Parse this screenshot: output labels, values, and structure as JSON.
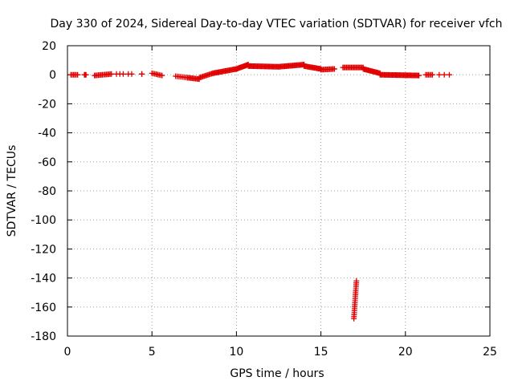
{
  "chart_data": {
    "type": "scatter",
    "title": "Day 330 of 2024, Sidereal Day-to-day VTEC variation (SDTVAR) for receiver vfch",
    "xlabel": "GPS time / hours",
    "ylabel": "SDTVAR / TECUs",
    "xlim": [
      0,
      25
    ],
    "ylim": [
      -180,
      20
    ],
    "x_ticks": [
      "0",
      "5",
      "10",
      "15",
      "20",
      "25"
    ],
    "y_ticks": [
      "20",
      "0",
      "-20",
      "-40",
      "-60",
      "-80",
      "-100",
      "-120",
      "-140",
      "-160",
      "-180"
    ],
    "grid": true,
    "marker": "plus",
    "color": "#e00000",
    "series": [
      {
        "name": "SDTVAR",
        "segments": [
          {
            "x0": 0.2,
            "x1": 0.6,
            "y0": 0,
            "y1": 0,
            "step": 0.08
          },
          {
            "x0": 1.0,
            "x1": 1.1,
            "y0": 0,
            "y1": 0,
            "step": 0.05
          },
          {
            "x0": 1.6,
            "x1": 2.6,
            "y0": -0.5,
            "y1": 0.5,
            "step": 0.08
          },
          {
            "x0": 2.9,
            "x1": 3.3,
            "y0": 0.5,
            "y1": 0.5,
            "step": 0.2
          },
          {
            "x0": 3.6,
            "x1": 3.8,
            "y0": 0.5,
            "y1": 0.5,
            "step": 0.2
          },
          {
            "x0": 4.4,
            "x1": 4.4,
            "y0": 0.5,
            "y1": 0.5,
            "step": 1
          },
          {
            "x0": 5.0,
            "x1": 5.6,
            "y0": 1,
            "y1": -0.5,
            "step": 0.08
          },
          {
            "x0": 6.4,
            "x1": 7.1,
            "y0": -1,
            "y1": -2,
            "step": 0.1
          },
          {
            "x0": 7.1,
            "x1": 7.8,
            "y0": -2,
            "y1": -3,
            "step": 0.07
          },
          {
            "x0": 7.8,
            "x1": 8.6,
            "y0": -2,
            "y1": 1,
            "step": 0.07
          },
          {
            "x0": 8.6,
            "x1": 10.0,
            "y0": 1,
            "y1": 4,
            "step": 0.06
          },
          {
            "x0": 10.0,
            "x1": 10.7,
            "y0": 4,
            "y1": 7,
            "step": 0.05
          },
          {
            "x0": 10.7,
            "x1": 12.5,
            "y0": 6,
            "y1": 5.5,
            "step": 0.06
          },
          {
            "x0": 12.5,
            "x1": 14.0,
            "y0": 5.5,
            "y1": 7,
            "step": 0.06
          },
          {
            "x0": 14.0,
            "x1": 15.0,
            "y0": 6,
            "y1": 4,
            "step": 0.06
          },
          {
            "x0": 15.0,
            "x1": 15.8,
            "y0": 3.5,
            "y1": 4,
            "step": 0.07
          },
          {
            "x0": 16.3,
            "x1": 17.5,
            "y0": 5,
            "y1": 5,
            "step": 0.07
          },
          {
            "x0": 17.5,
            "x1": 18.5,
            "y0": 4,
            "y1": 1,
            "step": 0.06
          },
          {
            "x0": 18.5,
            "x1": 20.8,
            "y0": 0,
            "y1": -0.5,
            "step": 0.06
          },
          {
            "x0": 21.2,
            "x1": 21.6,
            "y0": 0,
            "y1": 0,
            "step": 0.08
          },
          {
            "x0": 22.0,
            "x1": 22.6,
            "y0": 0,
            "y1": 0,
            "step": 0.3
          },
          {
            "x0": 16.95,
            "x1": 17.1,
            "y0": -168,
            "y1": -142,
            "step": 0.008
          }
        ]
      }
    ]
  }
}
